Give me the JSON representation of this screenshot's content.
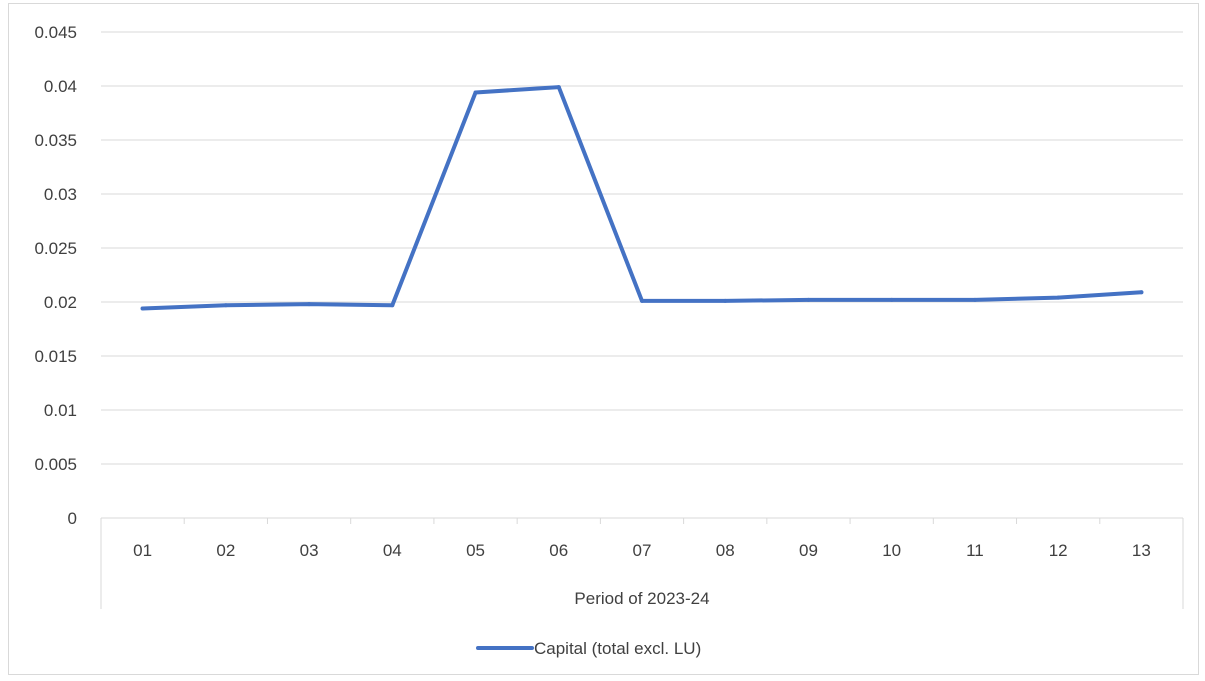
{
  "chart_data": {
    "type": "line",
    "title": "",
    "xlabel": "Period of 2023-24",
    "ylabel": "",
    "categories": [
      "01",
      "02",
      "03",
      "04",
      "05",
      "06",
      "07",
      "08",
      "09",
      "10",
      "11",
      "12",
      "13"
    ],
    "series": [
      {
        "name": "Capital (total excl. LU)",
        "color": "#4472c4",
        "values": [
          0.0194,
          0.0197,
          0.0198,
          0.0197,
          0.0394,
          0.0399,
          0.0201,
          0.0201,
          0.0202,
          0.0202,
          0.0202,
          0.0204,
          0.0209
        ]
      }
    ],
    "ylim": [
      0,
      0.045
    ],
    "yticks": [
      "0",
      "0.005",
      "0.01",
      "0.015",
      "0.02",
      "0.025",
      "0.03",
      "0.035",
      "0.04",
      "0.045"
    ],
    "grid": true,
    "legend": "bottom"
  }
}
